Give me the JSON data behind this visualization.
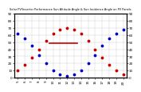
{
  "title": "Solar PV/Inverter Performance Sun Altitude Angle & Sun Incidence Angle on PV Panels",
  "x_hours": [
    5,
    6,
    7,
    8,
    9,
    10,
    11,
    12,
    13,
    14,
    15,
    16,
    17,
    18,
    19,
    20
  ],
  "sun_altitude": [
    62,
    55,
    45,
    32,
    20,
    10,
    4,
    2,
    4,
    10,
    20,
    32,
    45,
    55,
    62,
    68
  ],
  "sun_incidence": [
    10,
    18,
    28,
    40,
    52,
    62,
    68,
    70,
    68,
    62,
    52,
    40,
    28,
    18,
    10,
    5
  ],
  "ylim_left": [
    0,
    90
  ],
  "ylim_right": [
    0,
    90
  ],
  "yticks_left": [
    0,
    10,
    20,
    30,
    40,
    50,
    60,
    70,
    80,
    90
  ],
  "yticks_right": [
    0,
    10,
    20,
    30,
    40,
    50,
    60,
    70,
    80,
    90
  ],
  "xticks": [
    5,
    6,
    7,
    8,
    9,
    10,
    11,
    12,
    13,
    14,
    15,
    16,
    17,
    18,
    19,
    20
  ],
  "blue_color": "#0000cc",
  "red_color": "#cc0000",
  "grid_color": "#aaaaaa",
  "bg_color": "#ffffff",
  "dot_size": 3,
  "hline_y": 48,
  "hline_x_start": 9.5,
  "hline_x_end": 13.5,
  "title_fontsize": 2.5,
  "tick_fontsize": 3
}
